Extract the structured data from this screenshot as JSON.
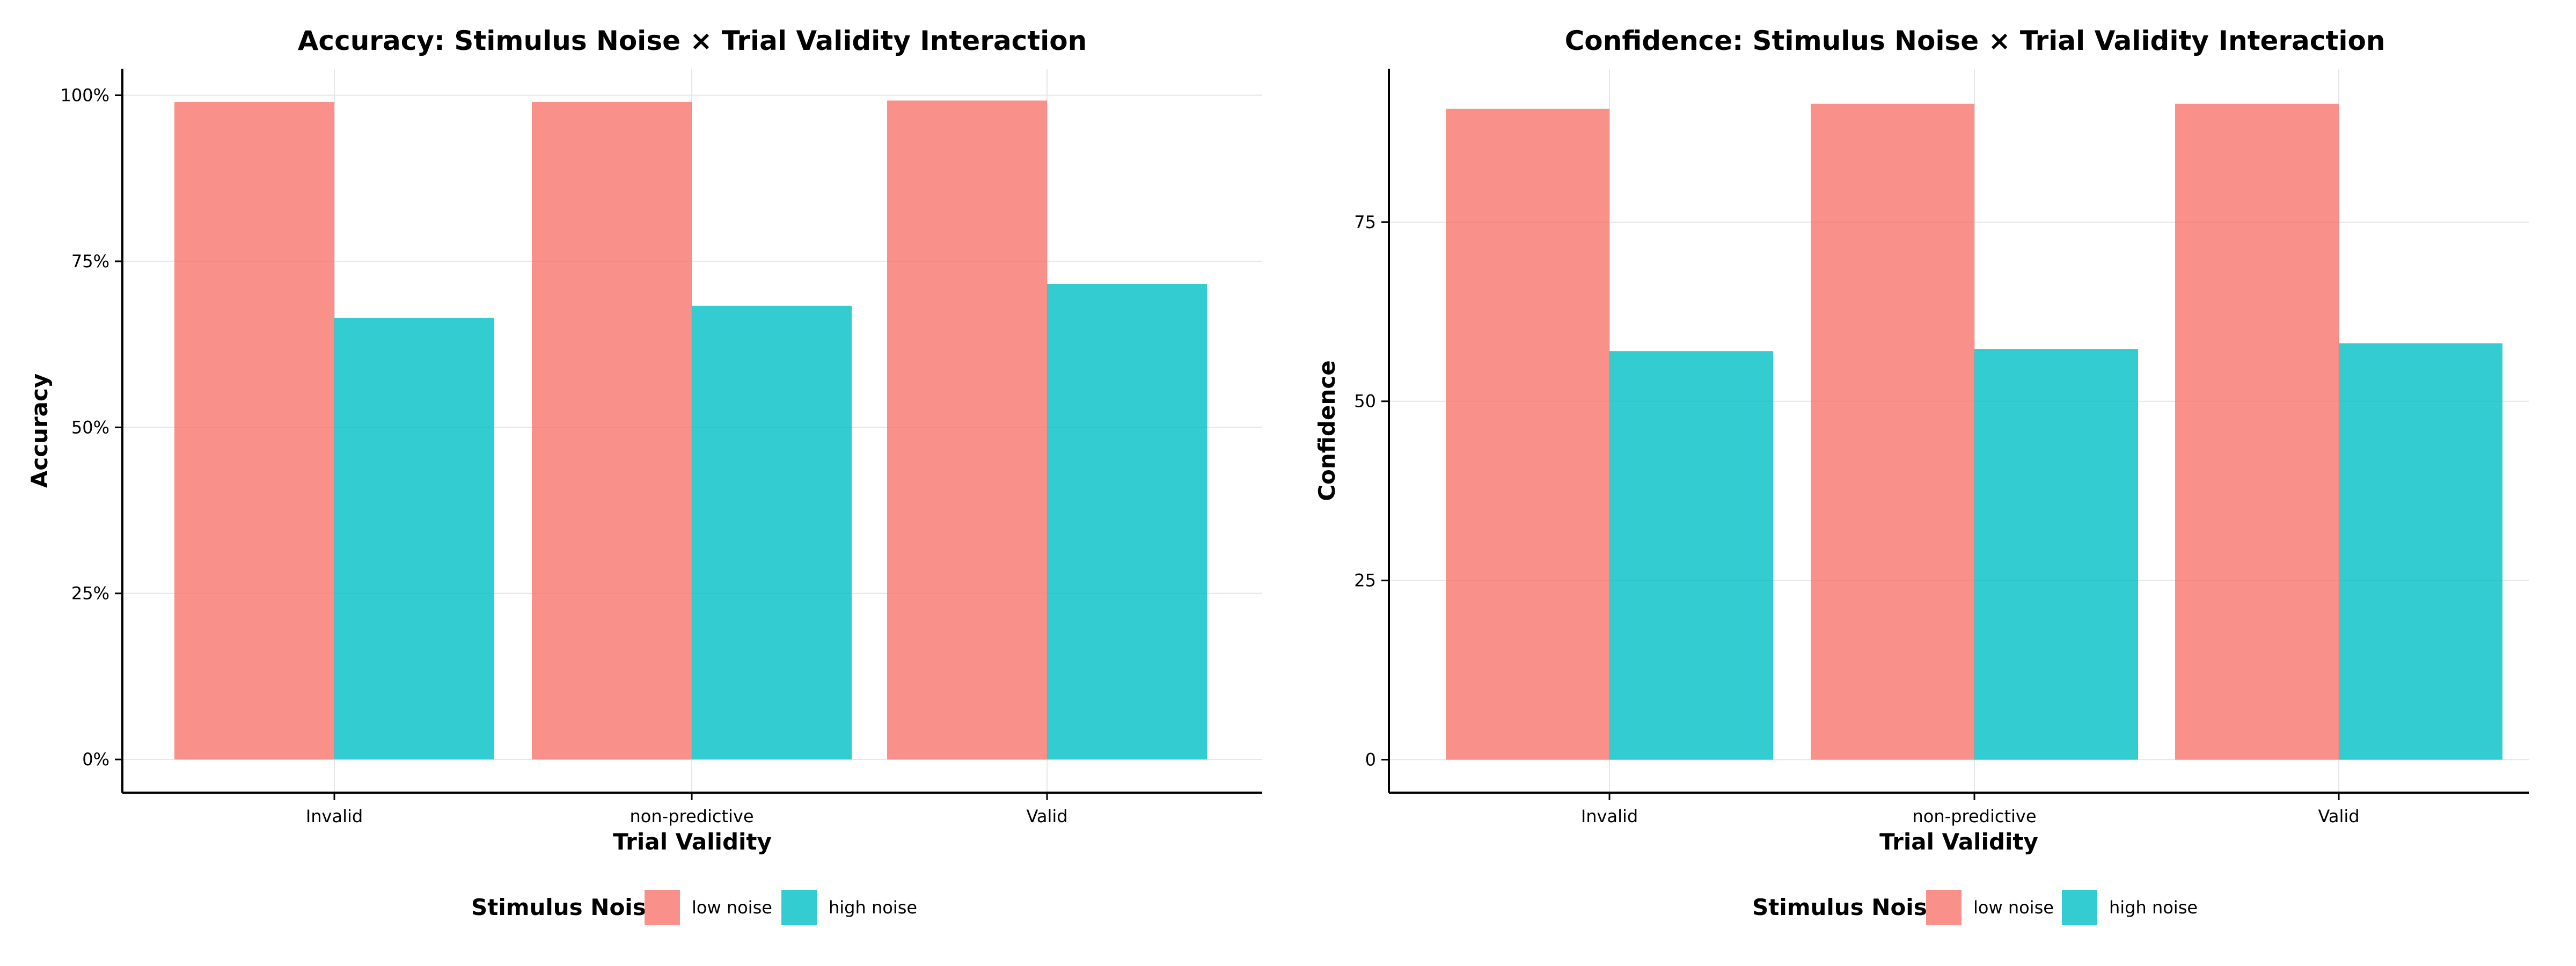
{
  "chart_data": [
    {
      "type": "bar",
      "title": "Accuracy: Stimulus Noise × Trial Validity Interaction",
      "xlabel": "Trial Validity",
      "ylabel": "Accuracy",
      "categories": [
        "Invalid",
        "non-predictive",
        "Valid"
      ],
      "series": [
        {
          "name": "low noise",
          "color": "#F8766D",
          "values": [
            0.99,
            0.99,
            0.992
          ]
        },
        {
          "name": "high noise",
          "color": "#00BFC4",
          "values": [
            0.665,
            0.683,
            0.716
          ]
        }
      ],
      "ylim": [
        -0.05,
        1.04
      ],
      "yticks": [
        0,
        0.25,
        0.5,
        0.75,
        1.0
      ],
      "ytick_labels": [
        "0%",
        "25%",
        "50%",
        "75%",
        "100%"
      ],
      "grid": true,
      "legend": {
        "title": "Stimulus Nois",
        "placement": "bottom"
      }
    },
    {
      "type": "bar",
      "title": "Confidence: Stimulus Noise × Trial Validity Interaction",
      "xlabel": "Trial Validity",
      "ylabel": "Confidence",
      "categories": [
        "Invalid",
        "non-predictive",
        "Valid"
      ],
      "series": [
        {
          "name": "low noise",
          "color": "#F8766D",
          "values": [
            90.8,
            91.5,
            91.5
          ]
        },
        {
          "name": "high noise",
          "color": "#00BFC4",
          "values": [
            57.0,
            57.3,
            58.1
          ]
        }
      ],
      "ylim": [
        -4.6,
        96.4
      ],
      "yticks": [
        0,
        25,
        50,
        75
      ],
      "ytick_labels": [
        "0",
        "25",
        "50",
        "75"
      ],
      "grid": true,
      "legend": {
        "title": "Stimulus Nois",
        "placement": "bottom"
      }
    }
  ]
}
